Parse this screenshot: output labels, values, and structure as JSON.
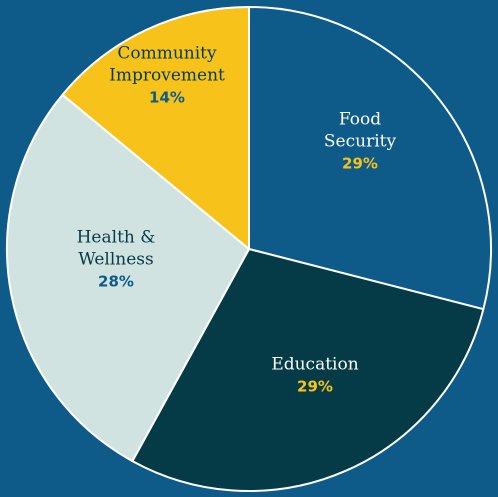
{
  "chart_data": {
    "type": "pie",
    "slices": [
      {
        "name": [
          "Food",
          "Security"
        ],
        "value": 29,
        "label": "29%",
        "color": "#0E5B89",
        "name_color": "#FFFFFF",
        "pct_color": "#F7C31A"
      },
      {
        "name": [
          "Education"
        ],
        "value": 29,
        "label": "29%",
        "color": "#053A47",
        "name_color": "#FFFFFF",
        "pct_color": "#F7C31A"
      },
      {
        "name": [
          "Health &",
          "Wellness"
        ],
        "value": 28,
        "label": "28%",
        "color": "#D0E3E1",
        "name_color": "#053A47",
        "pct_color": "#0E5B89"
      },
      {
        "name": [
          "Community",
          "Improvement"
        ],
        "value": 14,
        "label": "14%",
        "color": "#F7C31A",
        "name_color": "#053A47",
        "pct_color": "#0E5B89"
      }
    ]
  },
  "colors": {
    "background": "#0E5B89",
    "divider": "#FFFFFF"
  }
}
